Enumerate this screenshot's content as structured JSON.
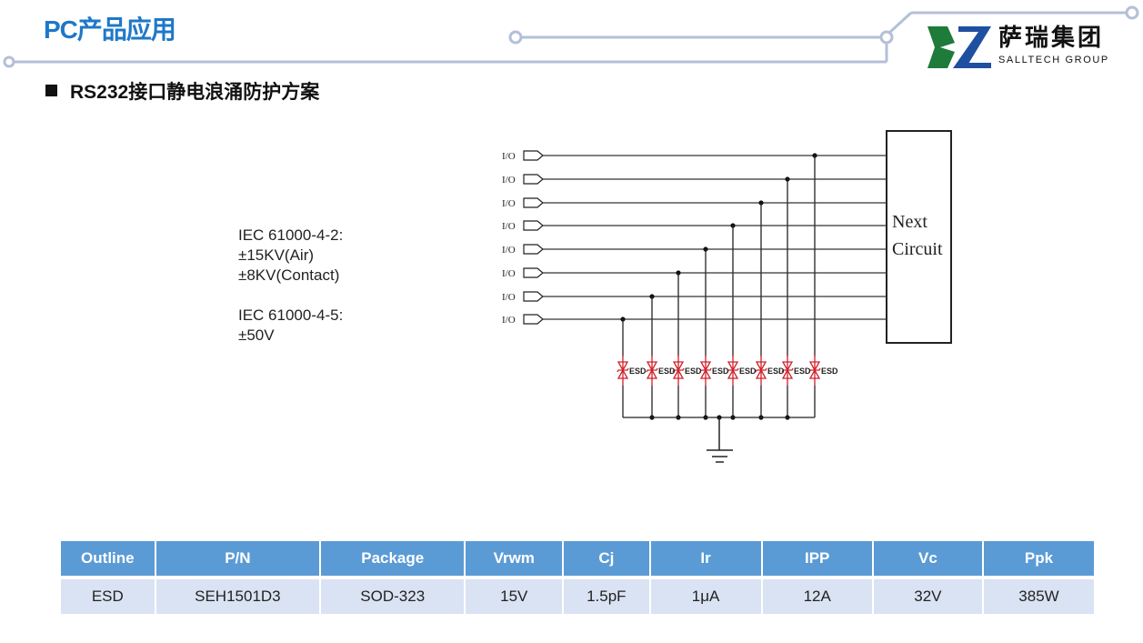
{
  "header": {
    "title": "PC产品应用",
    "logo": {
      "cn": "萨瑞集团",
      "en": "SALLTECH GROUP",
      "green": "#1e7b3a",
      "blue": "#1f4fa0"
    },
    "line_color": "#b4bfd8"
  },
  "section": {
    "title": "RS232接口静电浪涌防护方案"
  },
  "specs": {
    "text": "IEC 61000-4-2:\n±15KV(Air)\n±8KV(Contact)\n\nIEC 61000-4-5:\n±50V"
  },
  "diagram": {
    "io_labels": [
      "I/O",
      "I/O",
      "I/O",
      "I/O",
      "I/O",
      "I/O",
      "I/O",
      "I/O"
    ],
    "box_label_1": "Next",
    "box_label_2": "Circuit",
    "esd_labels": [
      "ESD",
      "ESD",
      "ESD",
      "ESD",
      "ESD",
      "ESD",
      "ESD",
      "ESD"
    ],
    "esd_color": "#d0202a"
  },
  "table": {
    "headers": [
      "Outline",
      "P/N",
      "Package",
      "Vrwm",
      "Cj",
      "Ir",
      "IPP",
      "Vc",
      "Ppk"
    ],
    "rows": [
      [
        "ESD",
        "SEH1501D3",
        "SOD-323",
        "15V",
        "1.5pF",
        "1μA",
        "12A",
        "32V",
        "385W"
      ]
    ],
    "header_color": "#5b9bd5",
    "row_color": "#dae3f3"
  }
}
